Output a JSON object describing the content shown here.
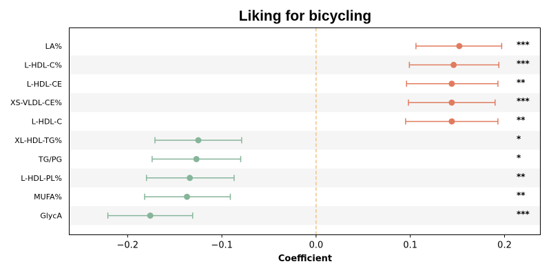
{
  "chart_data": {
    "type": "scatter",
    "title": "Liking for bicycling",
    "xlabel": "Coefficient",
    "ylabel": "",
    "xlim": [
      -0.262,
      0.238
    ],
    "xticks": [
      -0.2,
      -0.1,
      0.0,
      0.1,
      0.2
    ],
    "xtick_labels": [
      "−0.2",
      "−0.1",
      "0.0",
      "0.1",
      "0.2"
    ],
    "reference_line": 0.0,
    "grid": false,
    "colors": {
      "positive": "#e07b5f",
      "negative": "#86b59a",
      "reference_line": "#f2c27f",
      "band": "#f5f5f5"
    },
    "categories": [
      "LA%",
      "L-HDL-C%",
      "L-HDL-CE",
      "XS-VLDL-CE%",
      "L-HDL-C",
      "XL-HDL-TG%",
      "TG/PG",
      "L-HDL-PL%",
      "MUFA%",
      "GlycA"
    ],
    "points": [
      {
        "label": "LA%",
        "estimate": 0.152,
        "ci_low": 0.106,
        "ci_high": 0.197,
        "significance": "***"
      },
      {
        "label": "L-HDL-C%",
        "estimate": 0.146,
        "ci_low": 0.099,
        "ci_high": 0.194,
        "significance": "***"
      },
      {
        "label": "L-HDL-CE",
        "estimate": 0.144,
        "ci_low": 0.096,
        "ci_high": 0.193,
        "significance": "**"
      },
      {
        "label": "XS-VLDL-CE%",
        "estimate": 0.144,
        "ci_low": 0.098,
        "ci_high": 0.19,
        "significance": "***"
      },
      {
        "label": "L-HDL-C",
        "estimate": 0.144,
        "ci_low": 0.095,
        "ci_high": 0.193,
        "significance": "**"
      },
      {
        "label": "XL-HDL-TG%",
        "estimate": -0.125,
        "ci_low": -0.171,
        "ci_high": -0.079,
        "significance": "*"
      },
      {
        "label": "TG/PG",
        "estimate": -0.127,
        "ci_low": -0.174,
        "ci_high": -0.08,
        "significance": "*"
      },
      {
        "label": "L-HDL-PL%",
        "estimate": -0.134,
        "ci_low": -0.18,
        "ci_high": -0.087,
        "significance": "**"
      },
      {
        "label": "MUFA%",
        "estimate": -0.137,
        "ci_low": -0.182,
        "ci_high": -0.091,
        "significance": "**"
      },
      {
        "label": "GlycA",
        "estimate": -0.176,
        "ci_low": -0.221,
        "ci_high": -0.131,
        "significance": "***"
      }
    ]
  }
}
